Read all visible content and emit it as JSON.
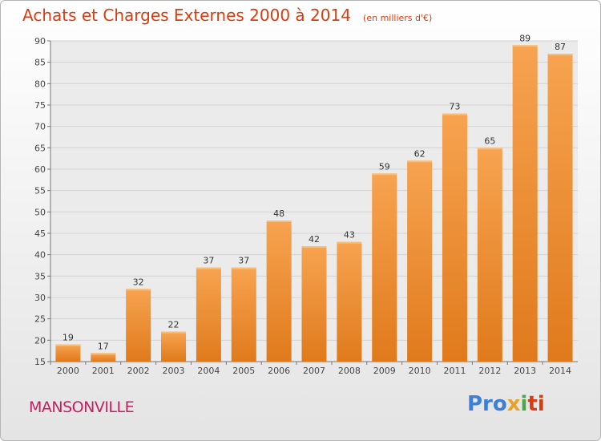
{
  "header": {
    "title": "Achats et Charges Externes 2000 à 2014",
    "subtitle": "(en milliers d'€)"
  },
  "footer": {
    "place": "MANSONVILLE",
    "logo": [
      "Pro",
      "x",
      "i",
      "ti"
    ]
  },
  "colors": {
    "bar_light": "#f7a350",
    "bar_dark": "#e07a1c",
    "title": "#d63d10"
  },
  "chart_data": {
    "type": "bar",
    "title": "Achats et Charges Externes 2000 à 2014",
    "subtitle": "(en milliers d'€)",
    "categories": [
      "2000",
      "2001",
      "2002",
      "2003",
      "2004",
      "2005",
      "2006",
      "2007",
      "2008",
      "2009",
      "2010",
      "2011",
      "2012",
      "2013",
      "2014"
    ],
    "values": [
      19,
      17,
      32,
      22,
      37,
      37,
      48,
      42,
      43,
      59,
      62,
      73,
      65,
      89,
      87
    ],
    "ylim": [
      15,
      90
    ],
    "yticks": [
      15,
      20,
      25,
      30,
      35,
      40,
      45,
      50,
      55,
      60,
      65,
      70,
      75,
      80,
      85,
      90
    ],
    "grid": "horizontal",
    "xlabel": "",
    "ylabel": ""
  }
}
